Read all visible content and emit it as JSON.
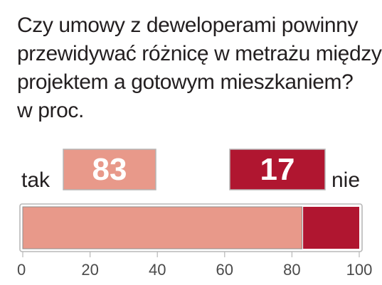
{
  "title_lines": [
    "Czy umowy z deweloperami powinny",
    "przewidywać różnicę w metrażu między",
    "projektem a gotowym mieszkaniem?",
    "w proc."
  ],
  "chart_data": {
    "type": "bar",
    "orientation": "horizontal-stacked",
    "title": "Czy umowy z deweloperami powinny przewidywać różnicę w metrażu między projektem a gotowym mieszkaniem?",
    "unit": "w proc.",
    "series": [
      {
        "name": "tak",
        "value": 83,
        "label": "83",
        "color": "#e8998a"
      },
      {
        "name": "nie",
        "value": 17,
        "label": "17",
        "color": "#b01630"
      }
    ],
    "xlim": [
      0,
      100
    ],
    "xticks": [
      0,
      20,
      40,
      60,
      80,
      100
    ],
    "grid": false,
    "legend": "labels at ends of bar"
  },
  "colors": {
    "tak": "#e8998a",
    "nie": "#b01630",
    "bar_outline": "#b8b8b8",
    "text": "#231f20",
    "tick": "#4a4a4a"
  }
}
